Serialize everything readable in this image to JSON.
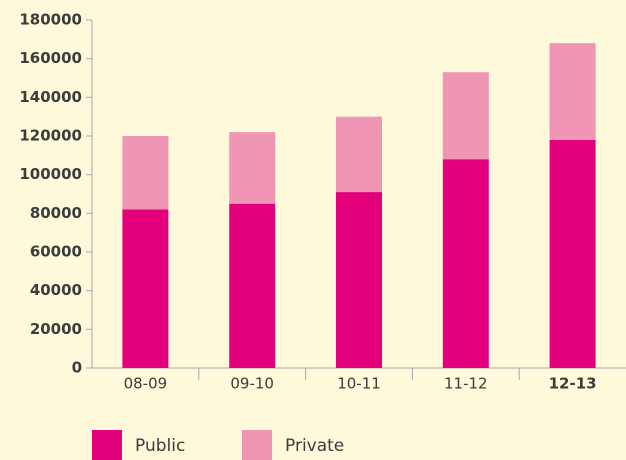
{
  "chart_data": {
    "type": "stacked_bar",
    "categories": [
      "08-09",
      "09-10",
      "10-11",
      "11-12",
      "12-13"
    ],
    "series": [
      {
        "name": "Public",
        "color": "#e4007c",
        "values": [
          82000,
          85000,
          91000,
          108000,
          118000
        ]
      },
      {
        "name": "Private",
        "color": "#ef95b5",
        "values": [
          38000,
          37000,
          39000,
          45000,
          50000
        ]
      }
    ],
    "ylim": [
      0,
      180000
    ],
    "yticks": [
      0,
      20000,
      40000,
      60000,
      80000,
      100000,
      120000,
      140000,
      160000,
      180000
    ],
    "grid": false,
    "legend": "bottom"
  }
}
